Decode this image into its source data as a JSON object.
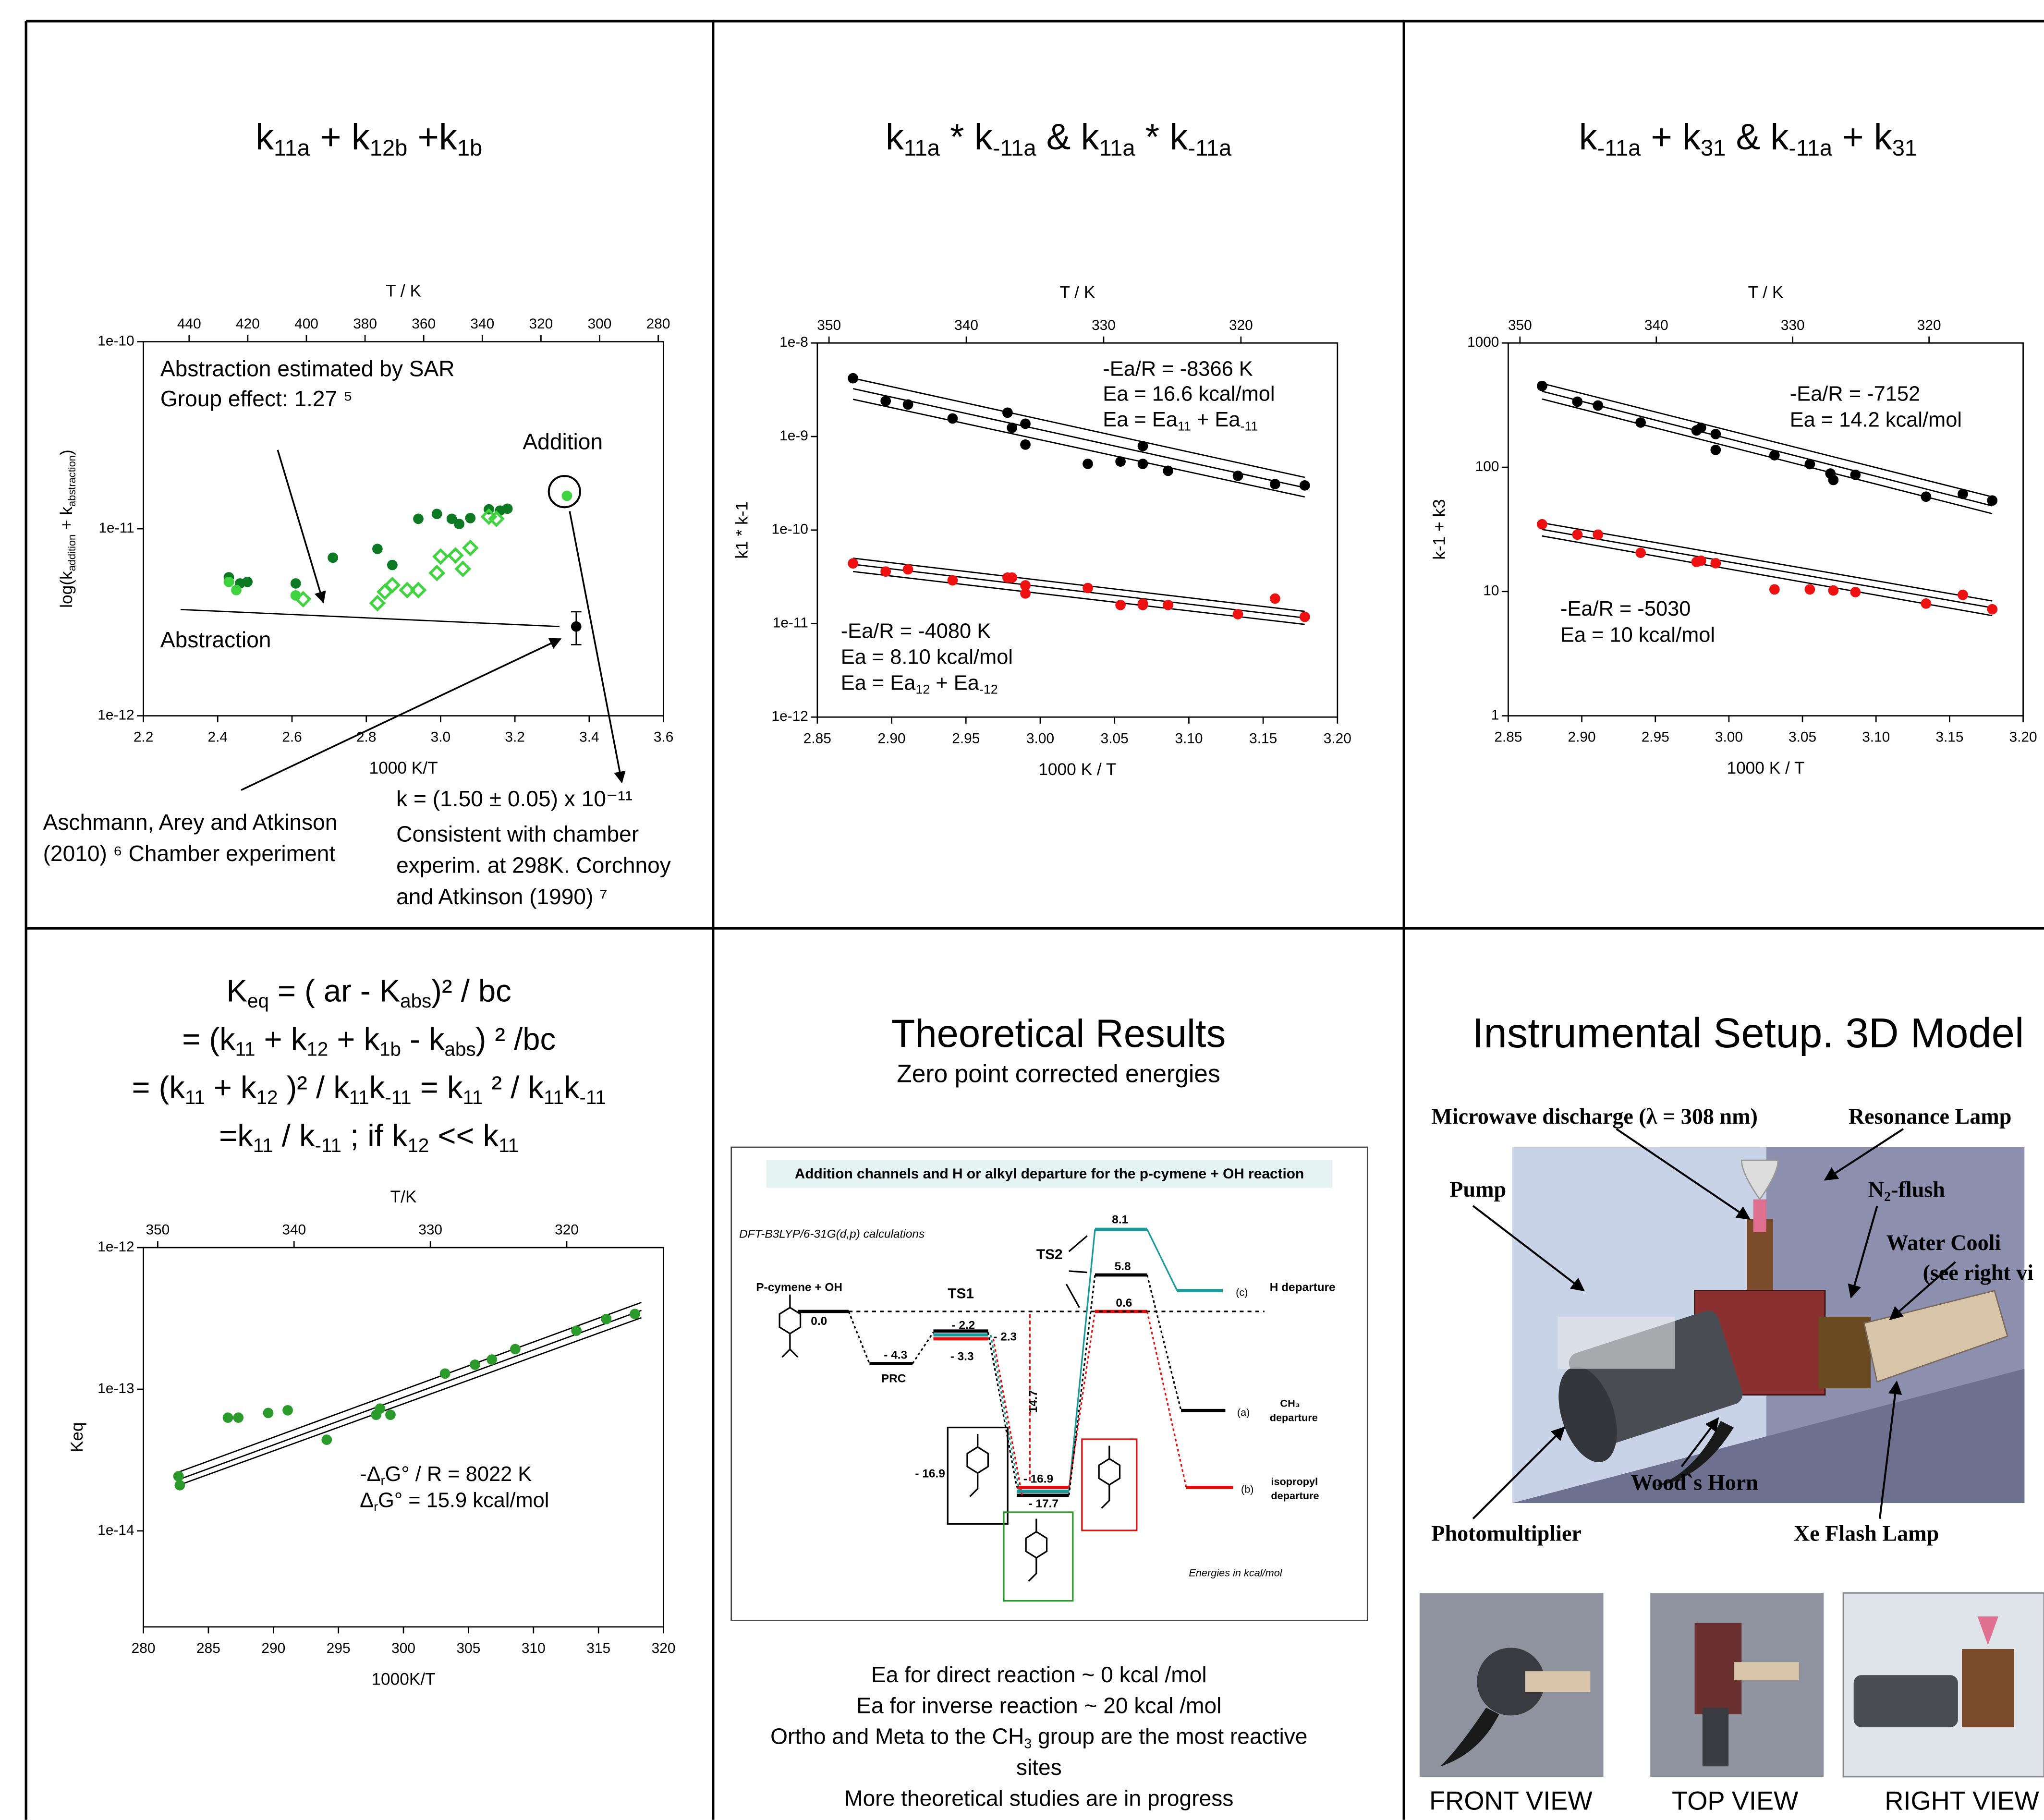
{
  "chart_data": [
    {
      "type": "scatter",
      "title_lines": [
        [
          "k",
          "11a",
          " + k",
          "12b",
          " +k",
          "1b"
        ]
      ],
      "x2label": "T / K",
      "xlabel": "1000  K/T",
      "ylabel": [
        "log(k",
        "addition",
        " + k",
        "abstraction",
        ")"
      ],
      "xlim": [
        2.2,
        3.6
      ],
      "xticks": [
        2.2,
        2.4,
        2.6,
        2.8,
        {
          "value": 3.0,
          "label": "3.0"
        },
        3.2,
        3.4,
        3.6
      ],
      "x2lim": [
        455.6,
        278.2
      ],
      "x2ticks": [
        440,
        420,
        400,
        380,
        360,
        340,
        320,
        300,
        280
      ],
      "ylim": [
        1e-12,
        1e-10
      ],
      "log_y": true,
      "yticks": [
        {
          "value": 1e-12,
          "label": "1e-12"
        },
        {
          "value": 1e-11,
          "label": "1e-11"
        },
        {
          "value": 1e-10,
          "label": "1e-10"
        }
      ],
      "series": [
        {
          "color": "#0b7a22",
          "marker": "circle",
          "x": [
            2.43,
            2.46,
            2.48,
            2.61,
            2.71,
            2.83,
            2.87,
            2.94,
            2.99,
            3.03,
            3.05,
            3.08,
            3.13,
            3.16,
            3.18
          ],
          "values": [
            5.5e-12,
            5.1e-12,
            5.2e-12,
            5.1e-12,
            7e-12,
            7.8e-12,
            6.4e-12,
            1.13e-11,
            1.2e-11,
            1.13e-11,
            1.06e-11,
            1.14e-11,
            1.27e-11,
            1.25e-11,
            1.28e-11
          ]
        },
        {
          "color": "#3fd33f",
          "marker": "circle",
          "x": [
            2.43,
            2.45,
            2.61,
            3.34
          ],
          "values": [
            5.2e-12,
            4.7e-12,
            4.4e-12,
            1.5e-11
          ]
        },
        {
          "color": "#3fd33f",
          "marker": "diamond-open",
          "x": [
            2.63,
            2.83,
            2.85,
            2.87,
            2.91,
            2.94,
            2.99,
            3.0,
            3.04,
            3.06,
            3.08,
            3.13,
            3.15
          ],
          "values": [
            4.2e-12,
            4e-12,
            4.6e-12,
            5e-12,
            4.7e-12,
            4.7e-12,
            5.8e-12,
            7.1e-12,
            7.2e-12,
            6.1e-12,
            7.9e-12,
            1.16e-11,
            1.13e-11
          ]
        },
        {
          "color": "#000000",
          "marker": "circle",
          "x": [
            3.365
          ],
          "values": [
            3e-12
          ],
          "errors": [
            6e-13
          ]
        }
      ],
      "lines": [
        {
          "color": "#000000",
          "x": [
            2.3,
            3.32
          ],
          "values": [
            3.7e-12,
            3e-12
          ]
        }
      ],
      "annotations": [
        "Abstraction estimated by SAR",
        "Group effect: 1.27 ⁵",
        "Addition",
        "Abstraction",
        "Aschmann, Arey and Atkinson",
        "(2010) ⁶ Chamber experiment",
        "k = (1.50 ± 0.05) x 10⁻¹¹",
        "Consistent with chamber",
        "experim. at 298K. Corchnoy",
        "and Atkinson (1990) ⁷"
      ]
    },
    {
      "type": "scatter",
      "title_lines": [
        [
          "k",
          "11a",
          " * k",
          "-11a",
          " & k",
          "11a",
          " * k",
          "-11a"
        ]
      ],
      "x2label": "T / K",
      "xlabel": "1000 K / T",
      "ylabel": "k1 * k-1",
      "xlim": [
        2.85,
        3.2
      ],
      "xticks": [
        2.85,
        {
          "value": 2.9,
          "label": "2.90"
        },
        2.95,
        {
          "value": 3.0,
          "label": "3.00"
        },
        3.05,
        {
          "value": 3.1,
          "label": "3.10"
        },
        3.15,
        {
          "value": 3.2,
          "label": "3.20"
        }
      ],
      "x2lim": [
        350.85,
        312.97
      ],
      "x2ticks": [
        350,
        340,
        330,
        320
      ],
      "ylim": [
        1e-12,
        1e-08
      ],
      "log_y": true,
      "yticks": [
        {
          "value": 1e-12,
          "label": "1e-12"
        },
        {
          "value": 1e-11,
          "label": "1e-11"
        },
        {
          "value": 1e-10,
          "label": "1e-10"
        },
        {
          "value": 1e-09,
          "label": "1e-9"
        },
        {
          "value": 1e-08,
          "label": "1e-8"
        }
      ],
      "series": [
        {
          "color": "#000000",
          "marker": "circle",
          "x": [
            2.874,
            2.896,
            2.911,
            2.941,
            2.978,
            2.981,
            2.99,
            2.99,
            3.032,
            3.054,
            3.069,
            3.069,
            3.086,
            3.133,
            3.158,
            3.178
          ],
          "values": [
            4.2e-09,
            2.4e-09,
            2.2e-09,
            1.56e-09,
            1.8e-09,
            1.24e-09,
            1.37e-09,
            8.2e-10,
            5.1e-10,
            5.4e-10,
            7.9e-10,
            5.1e-10,
            4.3e-10,
            3.8e-10,
            3.1e-10,
            3e-10
          ]
        },
        {
          "color": "#ee1111",
          "marker": "circle",
          "x": [
            2.874,
            2.896,
            2.911,
            2.941,
            2.978,
            2.981,
            2.99,
            2.99,
            3.032,
            3.054,
            3.069,
            3.069,
            3.086,
            3.133,
            3.158,
            3.178
          ],
          "values": [
            4.4e-11,
            3.6e-11,
            3.8e-11,
            2.9e-11,
            3.1e-11,
            3.1e-11,
            2.56e-11,
            2.1e-11,
            2.4e-11,
            1.58e-11,
            1.63e-11,
            1.58e-11,
            1.58e-11,
            1.26e-11,
            1.85e-11,
            1.18e-11
          ]
        }
      ],
      "lines": [
        {
          "color": "#000000",
          "x": [
            2.874,
            3.178
          ],
          "values": [
            3.25e-09,
            2.84e-10
          ]
        },
        {
          "color": "#000000",
          "x": [
            2.874,
            3.178
          ],
          "values": [
            4.2e-09,
            3.66e-10
          ]
        },
        {
          "color": "#000000",
          "x": [
            2.874,
            3.178
          ],
          "values": [
            2.5e-09,
            2.26e-10
          ]
        },
        {
          "color": "#000000",
          "x": [
            2.874,
            3.178
          ],
          "values": [
            4.3e-11,
            1.15e-11
          ]
        },
        {
          "color": "#000000",
          "x": [
            2.874,
            3.178
          ],
          "values": [
            5e-11,
            1.35e-11
          ]
        },
        {
          "color": "#000000",
          "x": [
            2.874,
            3.178
          ],
          "values": [
            3.6e-11,
            9.8e-12
          ]
        }
      ],
      "annotations": [
        "-Ea/R = -8366 K",
        "Ea = 16.6 kcal/mol",
        [
          "Ea = Ea",
          "11",
          " + Ea",
          "-11"
        ],
        "-Ea/R = -4080 K",
        "Ea = 8.10 kcal/mol",
        [
          "Ea = Ea",
          "12",
          " + Ea",
          "-12"
        ]
      ]
    },
    {
      "type": "scatter",
      "title_lines": [
        [
          "k",
          "-11a",
          " + k",
          "31",
          " & k",
          "-11a",
          " + k",
          "31"
        ]
      ],
      "x2label": "T / K",
      "xlabel": "1000 K / T",
      "ylabel": "k-1 + k3",
      "xlim": [
        2.85,
        3.2
      ],
      "xticks": [
        2.85,
        {
          "value": 2.9,
          "label": "2.90"
        },
        2.95,
        {
          "value": 3.0,
          "label": "3.00"
        },
        3.05,
        {
          "value": 3.1,
          "label": "3.10"
        },
        3.15,
        {
          "value": 3.2,
          "label": "3.20"
        }
      ],
      "x2lim": [
        350.86,
        313.1
      ],
      "x2ticks": [
        350,
        340,
        330,
        320
      ],
      "ylim": [
        1,
        1000
      ],
      "log_y": true,
      "yticks": [
        1,
        10,
        100,
        1000
      ],
      "series": [
        {
          "color": "#000000",
          "marker": "circle",
          "x": [
            2.873,
            2.897,
            2.911,
            2.94,
            2.978,
            2.981,
            2.991,
            2.991,
            3.031,
            3.055,
            3.069,
            3.071,
            3.086,
            3.134,
            3.159,
            3.179
          ],
          "values": [
            451,
            337,
            314,
            229,
            198,
            208,
            185,
            138,
            125,
            106,
            89,
            79,
            87,
            58,
            61,
            54
          ]
        },
        {
          "color": "#ee1111",
          "marker": "circle",
          "x": [
            2.873,
            2.897,
            2.911,
            2.94,
            2.978,
            2.981,
            2.991,
            3.031,
            3.055,
            3.071,
            3.086,
            3.134,
            3.159,
            3.179
          ],
          "values": [
            34.8,
            28.7,
            28.7,
            20.5,
            17.3,
            17.7,
            16.9,
            10.4,
            10.4,
            10.2,
            9.9,
            8.0,
            9.4,
            7.2
          ]
        }
      ],
      "lines": [
        {
          "color": "#000000",
          "x": [
            2.873,
            3.179
          ],
          "values": [
            409,
            48.9
          ]
        },
        {
          "color": "#000000",
          "x": [
            2.873,
            3.179
          ],
          "values": [
            473,
            57.8
          ]
        },
        {
          "color": "#000000",
          "x": [
            2.873,
            3.179
          ],
          "values": [
            354,
            42.3
          ]
        },
        {
          "color": "#000000",
          "x": [
            2.873,
            3.179
          ],
          "values": [
            31.6,
            7.4
          ]
        },
        {
          "color": "#000000",
          "x": [
            2.873,
            3.179
          ],
          "values": [
            35.7,
            8.4
          ]
        },
        {
          "color": "#000000",
          "x": [
            2.873,
            3.179
          ],
          "values": [
            28,
            6.4
          ]
        }
      ],
      "annotations": [
        "-Ea/R = -7152",
        "Ea = 14.2 kcal/mol",
        "-Ea/R = -5030",
        "Ea = 10 kcal/mol"
      ]
    },
    {
      "type": "scatter",
      "title_lines": [
        [
          "K",
          "eq",
          " = ( ar - K",
          "abs",
          ")² / bc"
        ],
        [
          "= (k",
          "11",
          " + k",
          "12",
          " + k",
          "1b",
          " - k",
          "abs",
          ") ² /bc"
        ],
        [
          "= (k",
          "11",
          " + k",
          "12",
          " )² / k",
          "11",
          "k",
          "-11",
          "  = k",
          "11",
          " ² / k",
          "11",
          "k",
          "-11"
        ],
        [
          "=k",
          "11",
          " / k",
          "-11",
          " ;  if k",
          "12",
          " << k",
          "11"
        ]
      ],
      "x2label": "T/K",
      "xlabel": "1000K/T",
      "ylabel": "Keq",
      "xlim": [
        280,
        320
      ],
      "xticks": [
        280,
        285,
        290,
        295,
        300,
        305,
        310,
        315,
        320
      ],
      "x2lim": [
        351.05,
        312.9
      ],
      "x2ticks": [
        350,
        340,
        330,
        320
      ],
      "ylim": [
        2.1e-15,
        1e-12
      ],
      "log_y": true,
      "yticks": [
        {
          "value": 1e-14,
          "label": "1e-14"
        },
        {
          "value": 1e-13,
          "label": "1e-13"
        },
        {
          "value": 1e-12,
          "label": "1e-12"
        }
      ],
      "series": [
        {
          "color": "#2a9a2a",
          "marker": "circle",
          "x": [
            282.7,
            282.8,
            286.5,
            287.3,
            289.6,
            291.1,
            294.1,
            297.9,
            298.2,
            299.0,
            303.2,
            305.5,
            306.8,
            308.6,
            313.3,
            315.6,
            317.8
          ],
          "values": [
            2.43e-14,
            2.1e-14,
            6.3e-14,
            6.3e-14,
            6.8e-14,
            7.1e-14,
            4.4e-14,
            6.6e-14,
            7.3e-14,
            6.6e-14,
            1.29e-13,
            1.49e-13,
            1.62e-13,
            1.92e-13,
            2.59e-13,
            3.13e-13,
            3.4e-13
          ]
        }
      ],
      "lines": [
        {
          "color": "#000000",
          "x": [
            282.7,
            318.3
          ],
          "values": [
            2.3e-14,
            3.6e-13
          ]
        },
        {
          "color": "#000000",
          "x": [
            282.7,
            318.3
          ],
          "values": [
            2.6e-14,
            4.1e-13
          ]
        },
        {
          "color": "#000000",
          "x": [
            282.7,
            318.3
          ],
          "values": [
            2.1e-14,
            3.2e-13
          ]
        }
      ],
      "annotations": [
        [
          "-Δ",
          "r",
          "G° / R = 8022 K"
        ],
        [
          "Δ",
          "r",
          "G° = 15.9 kcal/mol"
        ]
      ]
    }
  ],
  "theory": {
    "title": "Theoretical Results",
    "subtitle": "Zero point corrected energies",
    "notes": [
      "Ea for direct reaction ~ 0 kcal /mol",
      "Ea for inverse reaction ~ 20 kcal /mol",
      [
        "Ortho and Meta to the CH",
        "3",
        " group are the most reactive"
      ],
      "sites",
      "More theoretical studies are in progress"
    ]
  },
  "energy_diagram": {
    "header": "Addition channels and H or alkyl departure for the p-cymene + OH reaction",
    "method": "DFT-B3LYP/6-31G(d,p) calculations",
    "labels": [
      "P-cymene + OH",
      "0.0",
      "TS1",
      "- 4.3",
      "PRC",
      "- 2.2",
      "- 2.3",
      "- 3.3",
      "TS2",
      "8.1",
      "5.8",
      "0.6",
      "14.7",
      "- 16.9",
      "- 17.7",
      "- 16.9",
      "(c)",
      "H departure",
      "(a)",
      "CH₃",
      "departure",
      "(b)",
      "isopropyl",
      "departure",
      "Energies in kcal/mol"
    ]
  },
  "setup": {
    "title": "Instrumental Setup. 3D Model",
    "labels": [
      "Microwave discharge (λ = 308 nm)",
      "Resonance Lamp",
      "Pump",
      [
        "N",
        "2",
        "-flush"
      ],
      "Water Cooli",
      "(see right vi",
      "Wood`s Horn",
      "Photomultiplier",
      "Xe Flash Lamp"
    ],
    "views": [
      "FRONT VIEW",
      "TOP VIEW",
      "RIGHT VIEW"
    ]
  }
}
